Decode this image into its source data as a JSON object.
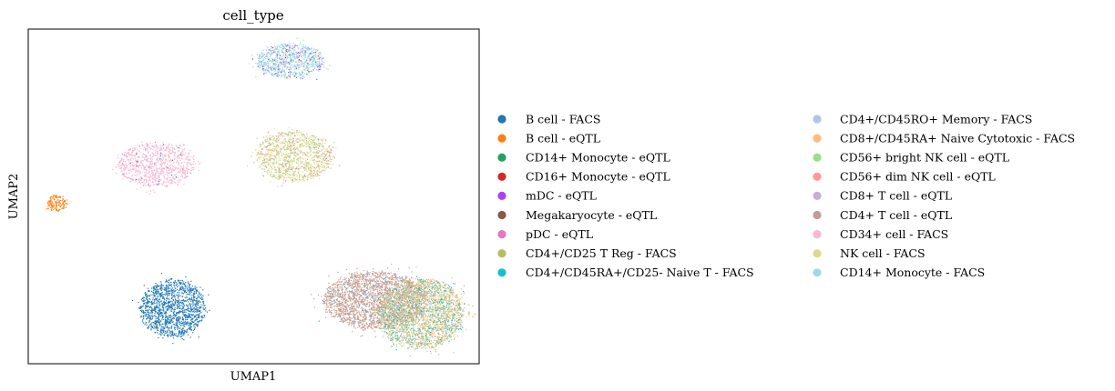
{
  "chart_data": {
    "type": "scatter",
    "title": "cell_type",
    "xlabel": "UMAP1",
    "ylabel": "UMAP2",
    "grid": false,
    "legend_position": "right",
    "xlim": [
      0,
      100
    ],
    "ylim": [
      0,
      100
    ],
    "series": [
      {
        "name": "B cell - FACS",
        "color": "#1f77b4"
      },
      {
        "name": "B cell - eQTL",
        "color": "#ff7f0e"
      },
      {
        "name": "CD14+ Monocyte - eQTL",
        "color": "#279e68"
      },
      {
        "name": "CD16+ Monocyte - eQTL",
        "color": "#d62728"
      },
      {
        "name": "mDC - eQTL",
        "color": "#aa40fc"
      },
      {
        "name": "Megakaryocyte - eQTL",
        "color": "#8c564b"
      },
      {
        "name": "pDC - eQTL",
        "color": "#e377c2"
      },
      {
        "name": "CD4+/CD25 T Reg - FACS",
        "color": "#b5bd61"
      },
      {
        "name": "CD4+/CD45RA+/CD25- Naive T - FACS",
        "color": "#17becf"
      },
      {
        "name": "CD4+/CD45RO+ Memory - FACS",
        "color": "#aec7e8"
      },
      {
        "name": "CD8+/CD45RA+ Naive Cytotoxic - FACS",
        "color": "#ffbb78"
      },
      {
        "name": "CD56+ bright NK cell - eQTL",
        "color": "#98df8a"
      },
      {
        "name": "CD56+ dim NK cell - eQTL",
        "color": "#ff9896"
      },
      {
        "name": "CD8+ T cell - eQTL",
        "color": "#c5b0d5"
      },
      {
        "name": "CD4+ T cell - eQTL",
        "color": "#c49c94"
      },
      {
        "name": "CD34+ cell - FACS",
        "color": "#f7b6d2"
      },
      {
        "name": "NK cell - FACS",
        "color": "#dbdb8d"
      },
      {
        "name": "CD14+ Monocyte - FACS",
        "color": "#9edae5"
      }
    ],
    "clusters": [
      {
        "cx": 6.5,
        "cy": 48,
        "rx": 2.2,
        "ry": 2.4,
        "n": 140,
        "mix": [
          [
            1,
            1.0
          ]
        ]
      },
      {
        "cx": 28.5,
        "cy": 59.5,
        "rx": 8.5,
        "ry": 6.5,
        "n": 900,
        "mix": [
          [
            15,
            0.94
          ],
          [
            6,
            0.03
          ],
          [
            5,
            0.015
          ],
          [
            0,
            0.015
          ]
        ]
      },
      {
        "cx": 58,
        "cy": 90.5,
        "rx": 7.5,
        "ry": 5.2,
        "n": 900,
        "mix": [
          [
            17,
            0.82
          ],
          [
            4,
            0.08
          ],
          [
            6,
            0.04
          ],
          [
            2,
            0.03
          ],
          [
            3,
            0.03
          ]
        ]
      },
      {
        "cx": 59,
        "cy": 62,
        "rx": 8.5,
        "ry": 7.5,
        "n": 1200,
        "mix": [
          [
            16,
            0.62
          ],
          [
            7,
            0.12
          ],
          [
            11,
            0.09
          ],
          [
            12,
            0.05
          ],
          [
            13,
            0.04
          ],
          [
            6,
            0.04
          ],
          [
            14,
            0.04
          ]
        ]
      },
      {
        "cx": 32,
        "cy": 16.5,
        "rx": 7.2,
        "ry": 8.5,
        "n": 1400,
        "mix": [
          [
            0,
            1.0
          ]
        ]
      },
      {
        "cx": 77,
        "cy": 19,
        "rx": 11.5,
        "ry": 8.5,
        "n": 2400,
        "mix": [
          [
            14,
            0.92
          ],
          [
            10,
            0.04
          ],
          [
            8,
            0.04
          ]
        ]
      },
      {
        "cx": 87,
        "cy": 15,
        "rx": 9.5,
        "ry": 10.5,
        "n": 2600,
        "mix": [
          [
            10,
            0.3
          ],
          [
            7,
            0.18
          ],
          [
            8,
            0.15
          ],
          [
            16,
            0.12
          ],
          [
            9,
            0.12
          ],
          [
            11,
            0.08
          ],
          [
            14,
            0.05
          ]
        ]
      }
    ]
  }
}
